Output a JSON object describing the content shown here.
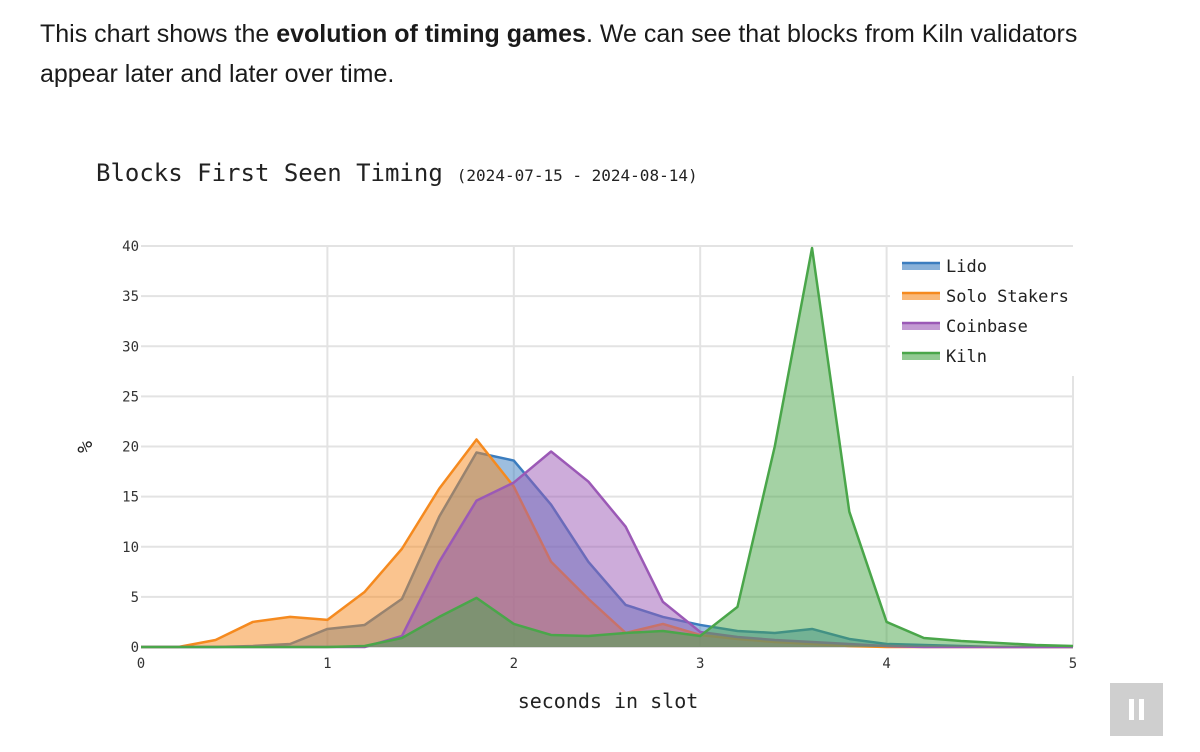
{
  "intro": {
    "before": "This chart shows the ",
    "bold": "evolution of timing games",
    "after": ". We can see that blocks from Kiln validators appear later and later over time."
  },
  "chart_data": {
    "type": "area",
    "title": "Blocks First Seen Timing",
    "subtitle": "(2024-07-15 - 2024-08-14)",
    "xlabel": "seconds in slot",
    "ylabel": "%",
    "xlim": [
      0,
      5
    ],
    "ylim": [
      0,
      40
    ],
    "x_ticks": [
      "0",
      "1",
      "2",
      "3",
      "4",
      "5"
    ],
    "y_ticks": [
      "0",
      "5",
      "10",
      "15",
      "20",
      "25",
      "30",
      "35",
      "40"
    ],
    "grid": true,
    "legend_position": "top-right",
    "series": [
      {
        "name": "Lido",
        "color": "#3b7dbf",
        "points": [
          [
            0,
            0
          ],
          [
            0.2,
            0
          ],
          [
            0.4,
            0
          ],
          [
            0.6,
            0.1
          ],
          [
            0.8,
            0.3
          ],
          [
            1.0,
            1.8
          ],
          [
            1.2,
            2.2
          ],
          [
            1.4,
            4.8
          ],
          [
            1.6,
            13.0
          ],
          [
            1.8,
            19.4
          ],
          [
            2.0,
            18.6
          ],
          [
            2.2,
            14.2
          ],
          [
            2.4,
            8.5
          ],
          [
            2.6,
            4.2
          ],
          [
            2.8,
            3.0
          ],
          [
            3.0,
            2.2
          ],
          [
            3.2,
            1.6
          ],
          [
            3.4,
            1.4
          ],
          [
            3.6,
            1.8
          ],
          [
            3.8,
            0.8
          ],
          [
            4.0,
            0.3
          ],
          [
            4.2,
            0.2
          ],
          [
            4.4,
            0.1
          ],
          [
            4.6,
            0
          ],
          [
            4.8,
            0
          ],
          [
            5.0,
            0
          ]
        ]
      },
      {
        "name": "Solo Stakers",
        "color": "#f58a1f",
        "points": [
          [
            0,
            0
          ],
          [
            0.2,
            0
          ],
          [
            0.4,
            0.7
          ],
          [
            0.6,
            2.5
          ],
          [
            0.8,
            3.0
          ],
          [
            1.0,
            2.7
          ],
          [
            1.2,
            5.5
          ],
          [
            1.4,
            9.8
          ],
          [
            1.6,
            15.8
          ],
          [
            1.8,
            20.7
          ],
          [
            2.0,
            16.0
          ],
          [
            2.2,
            8.5
          ],
          [
            2.4,
            4.8
          ],
          [
            2.6,
            1.4
          ],
          [
            2.8,
            2.3
          ],
          [
            3.0,
            1.2
          ],
          [
            3.2,
            0.8
          ],
          [
            3.4,
            0.5
          ],
          [
            3.6,
            0.3
          ],
          [
            3.8,
            0.1
          ],
          [
            4.0,
            0
          ],
          [
            4.2,
            0
          ],
          [
            4.4,
            0
          ],
          [
            4.6,
            0
          ],
          [
            4.8,
            0
          ],
          [
            5.0,
            0
          ]
        ]
      },
      {
        "name": "Coinbase",
        "color": "#9b59b6",
        "points": [
          [
            0,
            0
          ],
          [
            0.2,
            0
          ],
          [
            0.4,
            0
          ],
          [
            0.6,
            0
          ],
          [
            0.8,
            0
          ],
          [
            1.0,
            0
          ],
          [
            1.2,
            0
          ],
          [
            1.4,
            1.1
          ],
          [
            1.6,
            8.5
          ],
          [
            1.8,
            14.6
          ],
          [
            2.0,
            16.4
          ],
          [
            2.2,
            19.5
          ],
          [
            2.4,
            16.5
          ],
          [
            2.6,
            12.0
          ],
          [
            2.8,
            4.5
          ],
          [
            3.0,
            1.5
          ],
          [
            3.2,
            1.0
          ],
          [
            3.4,
            0.7
          ],
          [
            3.6,
            0.5
          ],
          [
            3.8,
            0.3
          ],
          [
            4.0,
            0.1
          ],
          [
            4.2,
            0
          ],
          [
            4.4,
            0
          ],
          [
            4.6,
            0
          ],
          [
            4.8,
            0
          ],
          [
            5.0,
            0
          ]
        ]
      },
      {
        "name": "Kiln",
        "color": "#4aa64a",
        "points": [
          [
            0,
            0
          ],
          [
            0.2,
            0
          ],
          [
            0.4,
            0
          ],
          [
            0.6,
            0
          ],
          [
            0.8,
            0
          ],
          [
            1.0,
            0
          ],
          [
            1.2,
            0.1
          ],
          [
            1.4,
            0.9
          ],
          [
            1.6,
            3.0
          ],
          [
            1.8,
            4.9
          ],
          [
            2.0,
            2.3
          ],
          [
            2.2,
            1.2
          ],
          [
            2.4,
            1.1
          ],
          [
            2.6,
            1.4
          ],
          [
            2.8,
            1.6
          ],
          [
            3.0,
            1.1
          ],
          [
            3.2,
            4.0
          ],
          [
            3.4,
            20.0
          ],
          [
            3.6,
            39.8
          ],
          [
            3.8,
            13.5
          ],
          [
            4.0,
            2.5
          ],
          [
            4.2,
            0.9
          ],
          [
            4.4,
            0.6
          ],
          [
            4.6,
            0.4
          ],
          [
            4.8,
            0.2
          ],
          [
            5.0,
            0.1
          ]
        ]
      }
    ]
  }
}
